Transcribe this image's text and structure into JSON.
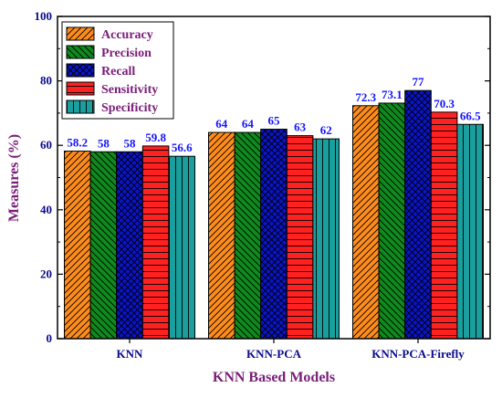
{
  "chart_data": {
    "type": "bar",
    "title": "",
    "xlabel": "KNN Based Models",
    "ylabel": "Measures (%)",
    "ylim": [
      0,
      100
    ],
    "yticks": [
      0,
      20,
      40,
      60,
      80,
      100
    ],
    "categories": [
      "KNN",
      "KNN-PCA",
      "KNN-PCA-Firefly"
    ],
    "legend_position": "top-left",
    "series": [
      {
        "name": "Accuracy",
        "color": "#ff8c1a",
        "pattern": "hatch-forward",
        "values": [
          58.2,
          64,
          72.3
        ],
        "labels": [
          "58.2",
          "64",
          "72.3"
        ]
      },
      {
        "name": "Precision",
        "color": "#0f8a1e",
        "pattern": "hatch-back",
        "values": [
          58,
          64,
          73.1
        ],
        "labels": [
          "58",
          "64",
          "73.1"
        ]
      },
      {
        "name": "Recall",
        "color": "#0a14c8",
        "pattern": "crosshatch",
        "values": [
          58,
          65,
          77
        ],
        "labels": [
          "58",
          "65",
          "77"
        ]
      },
      {
        "name": "Sensitivity",
        "color": "#ff2020",
        "pattern": "horizontal",
        "values": [
          59.8,
          63,
          70.3
        ],
        "labels": [
          "59.8",
          "63",
          "70.3"
        ]
      },
      {
        "name": "Specificity",
        "color": "#1a9e9e",
        "pattern": "vertical",
        "values": [
          56.6,
          62,
          66.5
        ],
        "labels": [
          "56.6",
          "62",
          "66.5"
        ]
      }
    ]
  }
}
